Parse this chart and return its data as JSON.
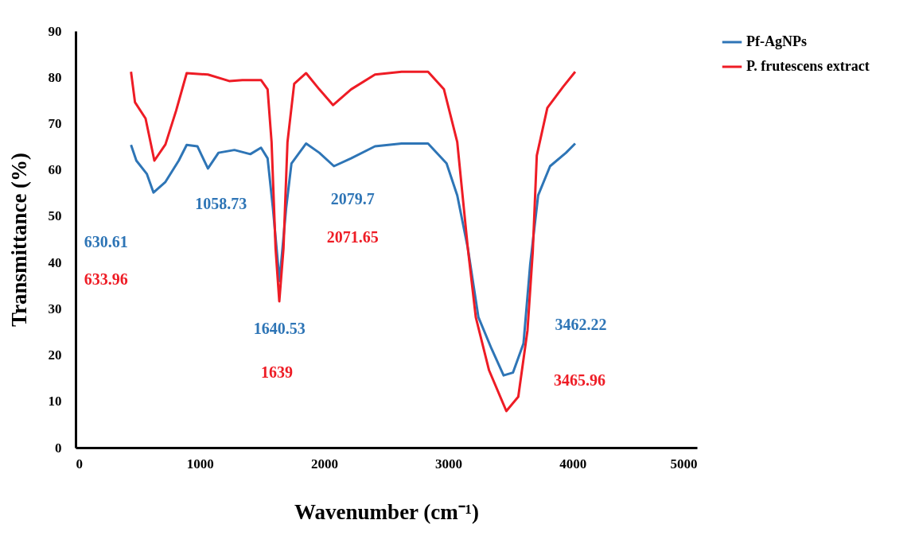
{
  "chart_data": {
    "type": "line",
    "xlabel": "Wavenumber (cm⁻¹)",
    "ylabel": "Transmittance (%)",
    "xlim": [
      0,
      5000
    ],
    "xticks": [
      0,
      1000,
      2000,
      3000,
      4000,
      5000
    ],
    "ylim": [
      0,
      90
    ],
    "yticks": [
      0,
      10,
      20,
      30,
      40,
      50,
      60,
      70,
      80,
      90
    ],
    "grid": false,
    "legend": "top right",
    "marker": "none",
    "line_style": "solid",
    "series": [
      {
        "name": "Pf-AgNPs",
        "color": "#2e75b6",
        "x": [
          446,
          489,
          574,
          627,
          723,
          830,
          894,
          980,
          1065,
          1150,
          1278,
          1406,
          1492,
          1545,
          1588,
          1641,
          1694,
          1737,
          1855,
          1961,
          2079,
          2217,
          2409,
          2623,
          2836,
          2985,
          3071,
          3156,
          3241,
          3348,
          3444,
          3519,
          3604,
          3658,
          3722,
          3818,
          3946,
          4020
        ],
        "values": [
          65.4,
          62.0,
          59.1,
          55.1,
          57.4,
          62.0,
          65.4,
          65.1,
          60.3,
          63.7,
          64.3,
          63.4,
          64.8,
          62.5,
          51.7,
          36.0,
          51.7,
          61.4,
          65.7,
          63.7,
          60.8,
          62.5,
          65.1,
          65.7,
          65.7,
          61.4,
          54.5,
          43.1,
          28.2,
          21.3,
          15.6,
          16.2,
          22.5,
          39.6,
          54.5,
          60.8,
          63.7,
          65.7
        ]
      },
      {
        "name": "P. frutescens extract",
        "color": "#ee1c25",
        "x": [
          446,
          478,
          563,
          634,
          723,
          809,
          894,
          1065,
          1236,
          1342,
          1492,
          1545,
          1577,
          1609,
          1639,
          1673,
          1705,
          1759,
          1855,
          1961,
          2072,
          2217,
          2409,
          2623,
          2836,
          2964,
          3071,
          3156,
          3220,
          3327,
          3466,
          3562,
          3636,
          3679,
          3711,
          3796,
          3924,
          4020
        ],
        "values": [
          81.2,
          74.6,
          71.1,
          62.0,
          65.5,
          72.8,
          80.9,
          80.6,
          79.2,
          79.4,
          79.4,
          77.4,
          66.0,
          43.1,
          31.6,
          43.1,
          66.0,
          78.6,
          80.9,
          77.4,
          74.0,
          77.4,
          80.6,
          81.2,
          81.2,
          77.4,
          66.0,
          43.1,
          28.2,
          16.7,
          7.9,
          11.0,
          25.3,
          42.5,
          63.1,
          73.4,
          78.0,
          81.2
        ]
      }
    ],
    "annotations": [
      "630.61",
      "633.96",
      "1058.73",
      "2079.7",
      "2071.65",
      "1640.53",
      "1639",
      "3462.22",
      "3465.96"
    ]
  }
}
